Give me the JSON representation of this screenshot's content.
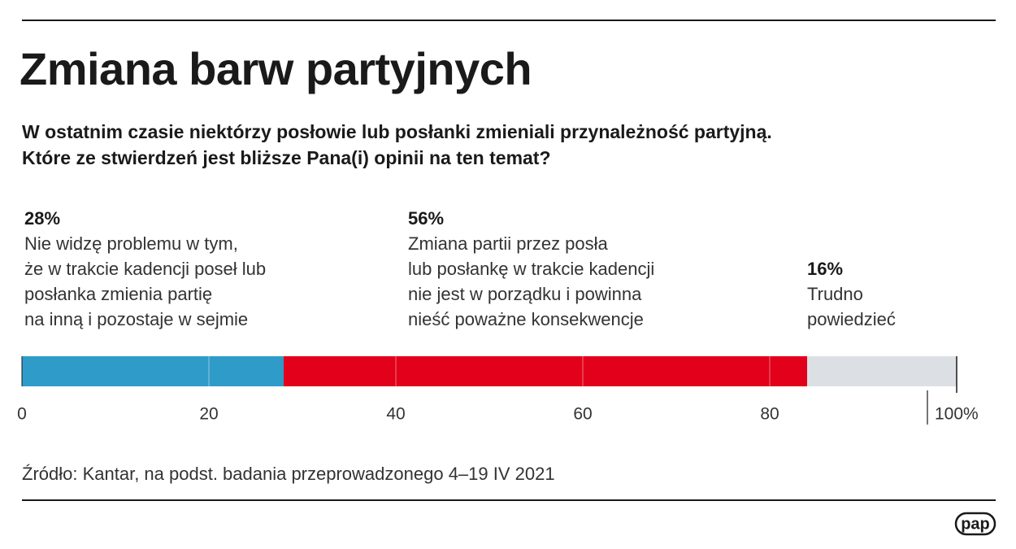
{
  "chart_data": {
    "type": "stacked-bar",
    "title": "Zmiana barw partyjnych",
    "subtitle": "W ostatnim czasie niektórzy posłowie lub posłanki zmieniali przynależność partyjną.\nKtóre ze stwierdzeń jest bliższe Pana(i) opinii na ten temat?",
    "series": [
      {
        "name": "Nie widzę problemu w tym,\nże w trakcie kadencji poseł lub\nposłanka zmienia partię\nna inną i pozostaje w sejmie",
        "color": "#2f9bc9",
        "values": [
          28
        ],
        "value_labels": [
          "28%"
        ]
      },
      {
        "name": "Zmiana partii przez posła\nlub posłankę w trakcie kadencji\nnie jest w porządku i powinna\nnieść poważne konsekwencje",
        "color": "#e2001a",
        "values": [
          56
        ],
        "value_labels": [
          "56%"
        ]
      },
      {
        "name": "Trudno\npowiedzieć",
        "color": "#dcdfe3",
        "values": [
          16
        ],
        "value_labels": [
          "16%"
        ]
      }
    ],
    "xlim": [
      0,
      100
    ],
    "xticks": [
      0,
      20,
      40,
      60,
      80,
      {
        "value": 100,
        "label": "100%"
      }
    ],
    "grid": true,
    "source": "Źródło: Kantar, na podst. badania przeprowadzonego 4–19 IV 2021",
    "logo": "pap"
  }
}
